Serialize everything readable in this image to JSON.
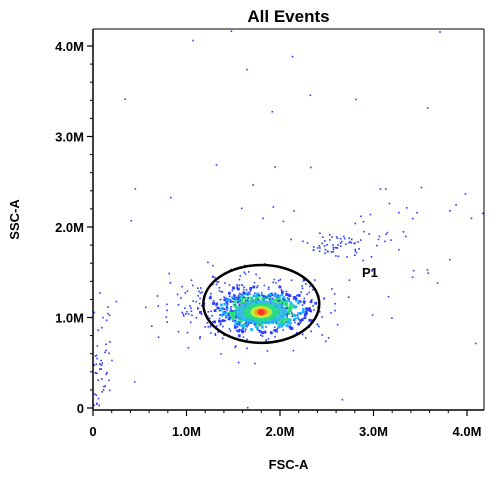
{
  "chart_data": {
    "type": "scatter",
    "title": "All Events",
    "xlabel": "FSC-A",
    "ylabel": "SSC-A",
    "xlim": [
      0,
      4200000
    ],
    "ylim": [
      0,
      4200000
    ],
    "x_ticks": [
      {
        "value": 0,
        "label": "0"
      },
      {
        "value": 1000000,
        "label": "1.0M"
      },
      {
        "value": 2000000,
        "label": "2.0M"
      },
      {
        "value": 3000000,
        "label": "3.0M"
      },
      {
        "value": 4000000,
        "label": "4.0M"
      }
    ],
    "y_ticks": [
      {
        "value": 0,
        "label": "0"
      },
      {
        "value": 1000000,
        "label": "1.0M"
      },
      {
        "value": 2000000,
        "label": "2.0M"
      },
      {
        "value": 3000000,
        "label": "3.0M"
      },
      {
        "value": 4000000,
        "label": "4.0M"
      }
    ],
    "colors": {
      "sparse": "#2b3bff",
      "density_ramp": [
        "#2b3bff",
        "#1fb3ff",
        "#28e07a",
        "#d6f02a",
        "#ff9a1a",
        "#ff2020"
      ]
    },
    "gate": {
      "name": "P1",
      "shape": "ellipse",
      "center": [
        1800000,
        1150000
      ],
      "radius": [
        620000,
        430000
      ],
      "stroke": "#000000"
    },
    "clusters": [
      {
        "name": "main-population",
        "center": [
          1800000,
          1070000
        ],
        "spread": [
          200000,
          90000
        ],
        "count": 650,
        "dense": true
      },
      {
        "name": "halo",
        "center": [
          1700000,
          1100000
        ],
        "spread": [
          420000,
          180000
        ],
        "count": 450,
        "dense": false
      },
      {
        "name": "doublet-streak",
        "center": [
          2600000,
          1800000
        ],
        "spread": [
          160000,
          70000
        ],
        "count": 60,
        "dense": false
      },
      {
        "name": "debris-near-origin",
        "center": [
          80000,
          400000
        ],
        "spread": [
          60000,
          350000
        ],
        "count": 60,
        "dense": false
      },
      {
        "name": "upper-tail",
        "center": [
          3300000,
          1900000
        ],
        "spread": [
          500000,
          250000
        ],
        "count": 40,
        "dense": false
      },
      {
        "name": "background",
        "center": [
          2000000,
          2000000
        ],
        "spread": [
          1600000,
          1600000
        ],
        "count": 50,
        "dense": false
      }
    ]
  }
}
